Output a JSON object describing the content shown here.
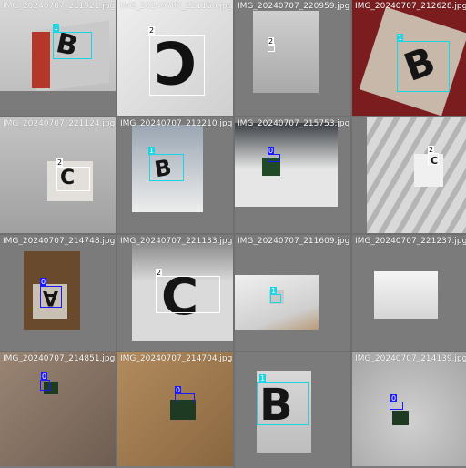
{
  "grid": {
    "tiles": [
      {
        "file": "IMG_20240707_211921.jpg",
        "label": "1",
        "letter": "B"
      },
      {
        "file": "IMG_20240707_221150.jpg",
        "label": "2",
        "letter": "C"
      },
      {
        "file": "IMG_20240707_220959.jpg",
        "label": "2",
        "letter": "c"
      },
      {
        "file": "IMG_20240707_212628.jpg",
        "label": "1",
        "letter": "B"
      },
      {
        "file": "IMG_20240707_221124.jpg",
        "label": "2",
        "letter": "C"
      },
      {
        "file": "IMG_20240707_212210.jpg",
        "label": "1",
        "letter": "B"
      },
      {
        "file": "IMG_20240707_215753.jpg",
        "label": "0",
        "letter": ""
      },
      {
        "file": "",
        "label": "2",
        "letter": "C"
      },
      {
        "file": "IMG_20240707_214748.jpg",
        "label": "0",
        "letter": "A"
      },
      {
        "file": "IMG_20240707_221133.jpg",
        "label": "2",
        "letter": "C"
      },
      {
        "file": "IMG_20240707_211609.jpg",
        "label": "1",
        "letter": ""
      },
      {
        "file": "IMG_20240707_221237.jpg",
        "label": "",
        "letter": ""
      },
      {
        "file": "IMG_20240707_214851.jpg",
        "label": "0",
        "letter": ""
      },
      {
        "file": "IMG_20240707_214704.jpg",
        "label": "0",
        "letter": ""
      },
      {
        "file": "",
        "label": "1",
        "letter": "B"
      },
      {
        "file": "IMG_20240707_214139.jpg",
        "label": "0",
        "letter": ""
      }
    ]
  },
  "colors": {
    "class_0": "#1a1aff",
    "class_1": "#19d6e6",
    "class_2": "#ffffff",
    "mosaic_bg": "#7b7b7b"
  }
}
